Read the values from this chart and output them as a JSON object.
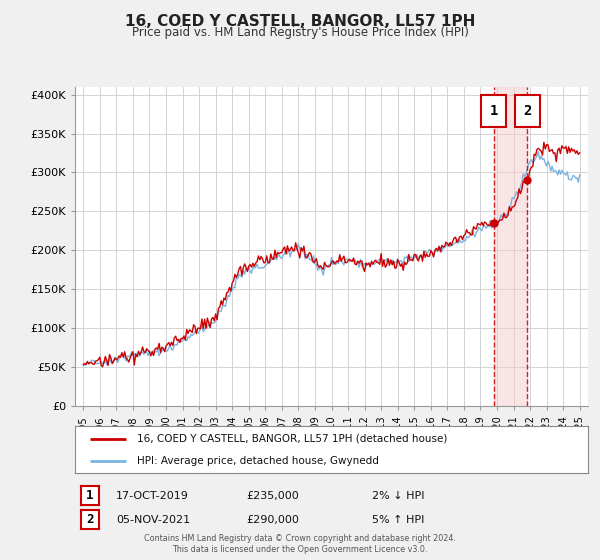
{
  "title": "16, COED Y CASTELL, BANGOR, LL57 1PH",
  "subtitle": "Price paid vs. HM Land Registry's House Price Index (HPI)",
  "legend_line1": "16, COED Y CASTELL, BANGOR, LL57 1PH (detached house)",
  "legend_line2": "HPI: Average price, detached house, Gwynedd",
  "annotation1_label": "1",
  "annotation1_date": "17-OCT-2019",
  "annotation1_price": "£235,000",
  "annotation1_hpi": "2% ↓ HPI",
  "annotation1_year": 2019.79,
  "annotation1_value": 235000,
  "annotation2_label": "2",
  "annotation2_date": "05-NOV-2021",
  "annotation2_price": "£290,000",
  "annotation2_hpi": "5% ↑ HPI",
  "annotation2_year": 2021.84,
  "annotation2_value": 290000,
  "hpi_color": "#7cb4e0",
  "price_color": "#cc0000",
  "marker_color": "#cc0000",
  "vline_color": "#cc0000",
  "grid_color": "#cccccc",
  "background_color": "#f0f0f0",
  "plot_bg_color": "#ffffff",
  "ylim": [
    0,
    410000
  ],
  "xlim": [
    1994.5,
    2025.5
  ],
  "yticks": [
    0,
    50000,
    100000,
    150000,
    200000,
    250000,
    300000,
    350000,
    400000
  ],
  "ytick_labels": [
    "£0",
    "£50K",
    "£100K",
    "£150K",
    "£200K",
    "£250K",
    "£300K",
    "£350K",
    "£400K"
  ],
  "xticks": [
    1995,
    1996,
    1997,
    1998,
    1999,
    2000,
    2001,
    2002,
    2003,
    2004,
    2005,
    2006,
    2007,
    2008,
    2009,
    2010,
    2011,
    2012,
    2013,
    2014,
    2015,
    2016,
    2017,
    2018,
    2019,
    2020,
    2021,
    2022,
    2023,
    2024,
    2025
  ],
  "footer_line1": "Contains HM Land Registry data © Crown copyright and database right 2024.",
  "footer_line2": "This data is licensed under the Open Government Licence v3.0."
}
